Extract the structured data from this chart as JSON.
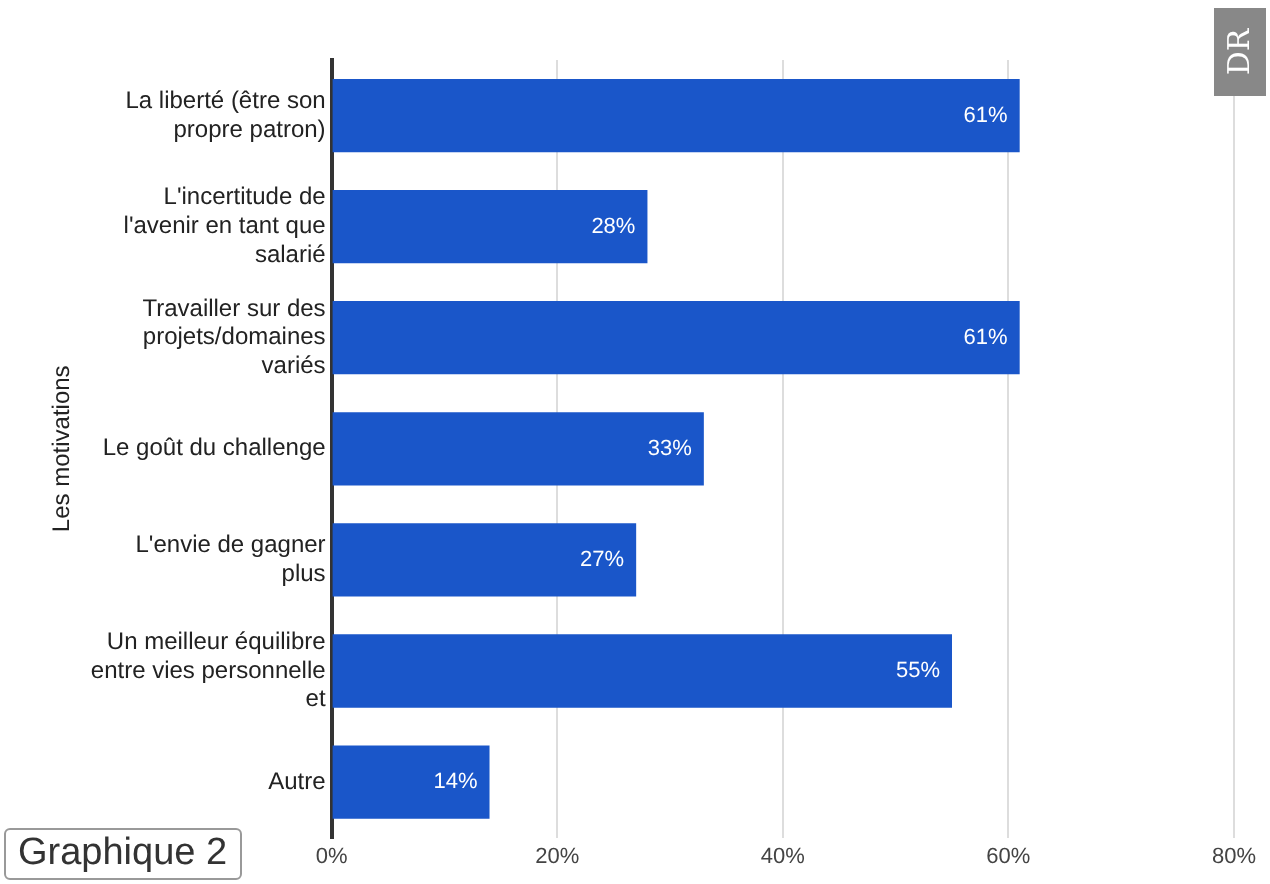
{
  "chart_data": {
    "type": "bar",
    "orientation": "horizontal",
    "ylabel": "Les motivations",
    "categories": [
      "La liberté (être son propre patron)",
      "L'incertitude de l'avenir en tant que salarié",
      "Travailler sur des projets/domaines variés",
      "Le goût du challenge",
      "L'envie de gagner plus",
      "Un meilleur équilibre entre vies personnelle et",
      "Autre"
    ],
    "values": [
      61,
      28,
      61,
      33,
      27,
      55,
      14
    ],
    "value_labels": [
      "61%",
      "28%",
      "61%",
      "33%",
      "27%",
      "55%",
      "14%"
    ],
    "color": "#1a56c9",
    "xlim": [
      0,
      80
    ],
    "xticks": [
      {
        "value": 0,
        "label": "0%"
      },
      {
        "value": 20,
        "label": "20%"
      },
      {
        "value": 40,
        "label": "40%"
      },
      {
        "value": 60,
        "label": "60%"
      },
      {
        "value": 80,
        "label": "80%"
      }
    ],
    "grid": "x",
    "annotations": [
      "Graphique 2",
      "DR"
    ]
  }
}
